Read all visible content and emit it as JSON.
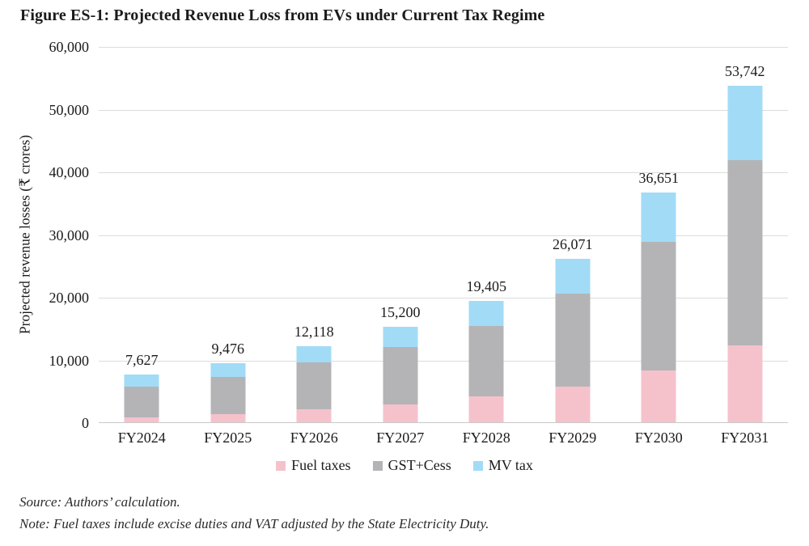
{
  "chart": {
    "title": "Figure ES-1: Projected Revenue Loss from EVs under Current Tax Regime",
    "ylabel": "Projected revenue losses (₹ crores)",
    "source": "Source: Authors’ calculation.",
    "note": "Note: Fuel taxes include excise duties and VAT adjusted by the State Electricity Duty."
  },
  "chart_data": {
    "type": "bar",
    "stacked": true,
    "title": "Figure ES-1: Projected Revenue Loss from EVs under Current Tax Regime",
    "xlabel": "",
    "ylabel": "Projected revenue losses (₹ crores)",
    "categories": [
      "FY2024",
      "FY2025",
      "FY2026",
      "FY2027",
      "FY2028",
      "FY2029",
      "FY2030",
      "FY2031"
    ],
    "series": [
      {
        "name": "Fuel taxes",
        "color": "#f5c2cc",
        "values": [
          780,
          1300,
          2100,
          2900,
          4070,
          5700,
          8300,
          12200
        ]
      },
      {
        "name": "GST+Cess",
        "color": "#b4b4b7",
        "values": [
          4840,
          5940,
          7420,
          9150,
          11260,
          14800,
          20450,
          29600
        ]
      },
      {
        "name": "MV tax",
        "color": "#a2dbf6",
        "values": [
          2007,
          2236,
          2598,
          3150,
          4075,
          5571,
          7901,
          11942
        ]
      }
    ],
    "totals": [
      7627,
      9476,
      12118,
      15200,
      19405,
      26071,
      36651,
      53742
    ],
    "total_labels": [
      "7,627",
      "9,476",
      "12,118",
      "15,200",
      "19,405",
      "26,071",
      "36,651",
      "53,742"
    ],
    "y_ticks": [
      "60,000",
      "50,000",
      "40,000",
      "30,000",
      "20,000",
      "10,000",
      "0"
    ],
    "ylim": [
      0,
      60000
    ],
    "grid": true,
    "gridline_color": "#dcdcdc",
    "legend_position": "bottom"
  }
}
